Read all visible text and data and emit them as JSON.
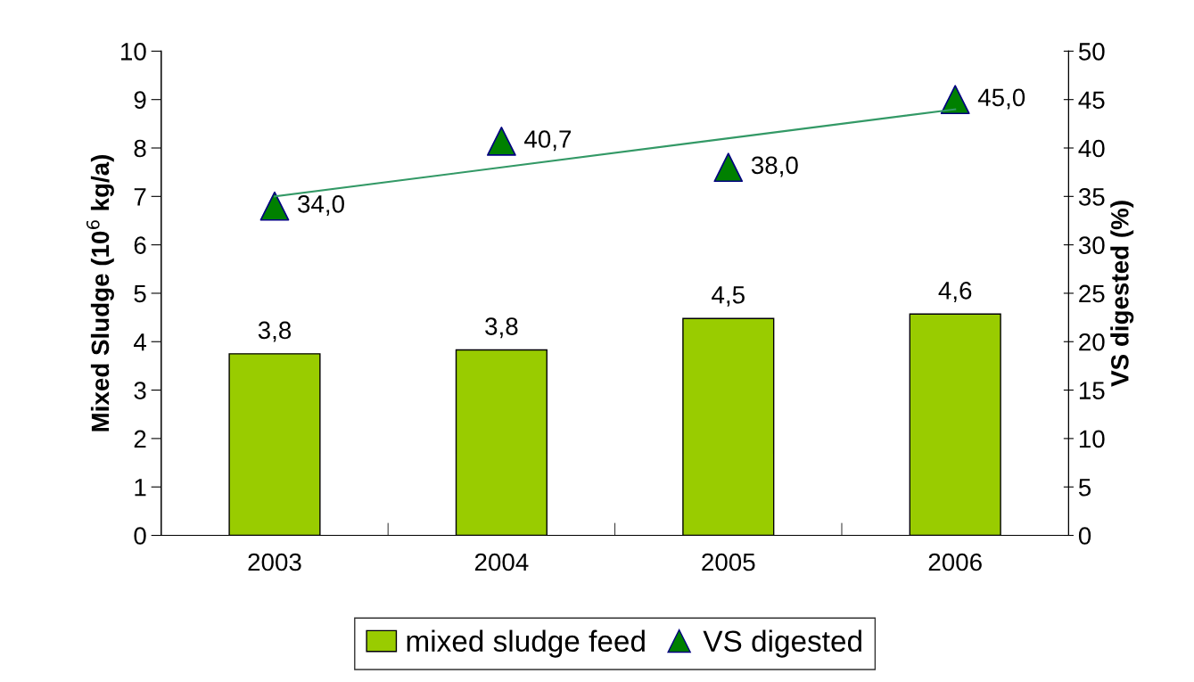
{
  "chart_data": {
    "type": "bar",
    "categories": [
      "2003",
      "2004",
      "2005",
      "2006"
    ],
    "ylabel": "Mixed Sludge (10$^{6}$ kg/a)",
    "y2label": "VS digested (%)",
    "ylim": [
      0,
      10
    ],
    "yticks": [
      0,
      1,
      2,
      3,
      4,
      5,
      6,
      7,
      8,
      9,
      10
    ],
    "y2lim": [
      0,
      50
    ],
    "y2ticks": [
      0,
      5,
      10,
      15,
      20,
      25,
      30,
      35,
      40,
      45,
      50
    ],
    "grid": false,
    "legend": "bottom",
    "series": [
      {
        "name": "mixed sludge feed",
        "color": "#99cc00",
        "values": [
          3.75,
          3.83,
          4.48,
          4.57
        ],
        "value_labels": [
          "3,8",
          "3,8",
          "4,5",
          "4,6"
        ]
      },
      {
        "type": "scatter",
        "name": "VS digested",
        "axis": "y2",
        "color": "#008000",
        "marker": "triangle",
        "values": [
          34.0,
          40.7,
          38.0,
          45.0
        ],
        "value_labels": [
          "34,0",
          "40,7",
          "38,0",
          "45,0"
        ]
      },
      {
        "type": "line",
        "axis": "y2",
        "color": "#339966",
        "marker": "none",
        "values": [
          35.0,
          38.0,
          41.0,
          44.0
        ]
      }
    ]
  }
}
